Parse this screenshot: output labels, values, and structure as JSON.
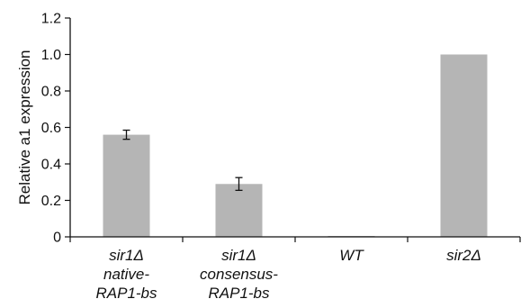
{
  "chart_data": {
    "type": "bar",
    "ylabel": "Relative a1 expression",
    "xlabel": "",
    "ylim": [
      0,
      1.2
    ],
    "yticks": [
      "0",
      "0.2",
      "0.4",
      "0.6",
      "0.8",
      "1.0",
      "1.2"
    ],
    "categories": [
      [
        "sir1Δ",
        "native-",
        "RAP1-bs"
      ],
      [
        "sir1Δ",
        "consensus-",
        "RAP1-bs"
      ],
      [
        "WT"
      ],
      [
        "sir2Δ"
      ]
    ],
    "values": [
      0.56,
      0.29,
      0.0,
      1.0
    ],
    "errors": [
      0.025,
      0.035,
      null,
      null
    ],
    "bar_color": "#b5b5b5",
    "grid": false
  }
}
